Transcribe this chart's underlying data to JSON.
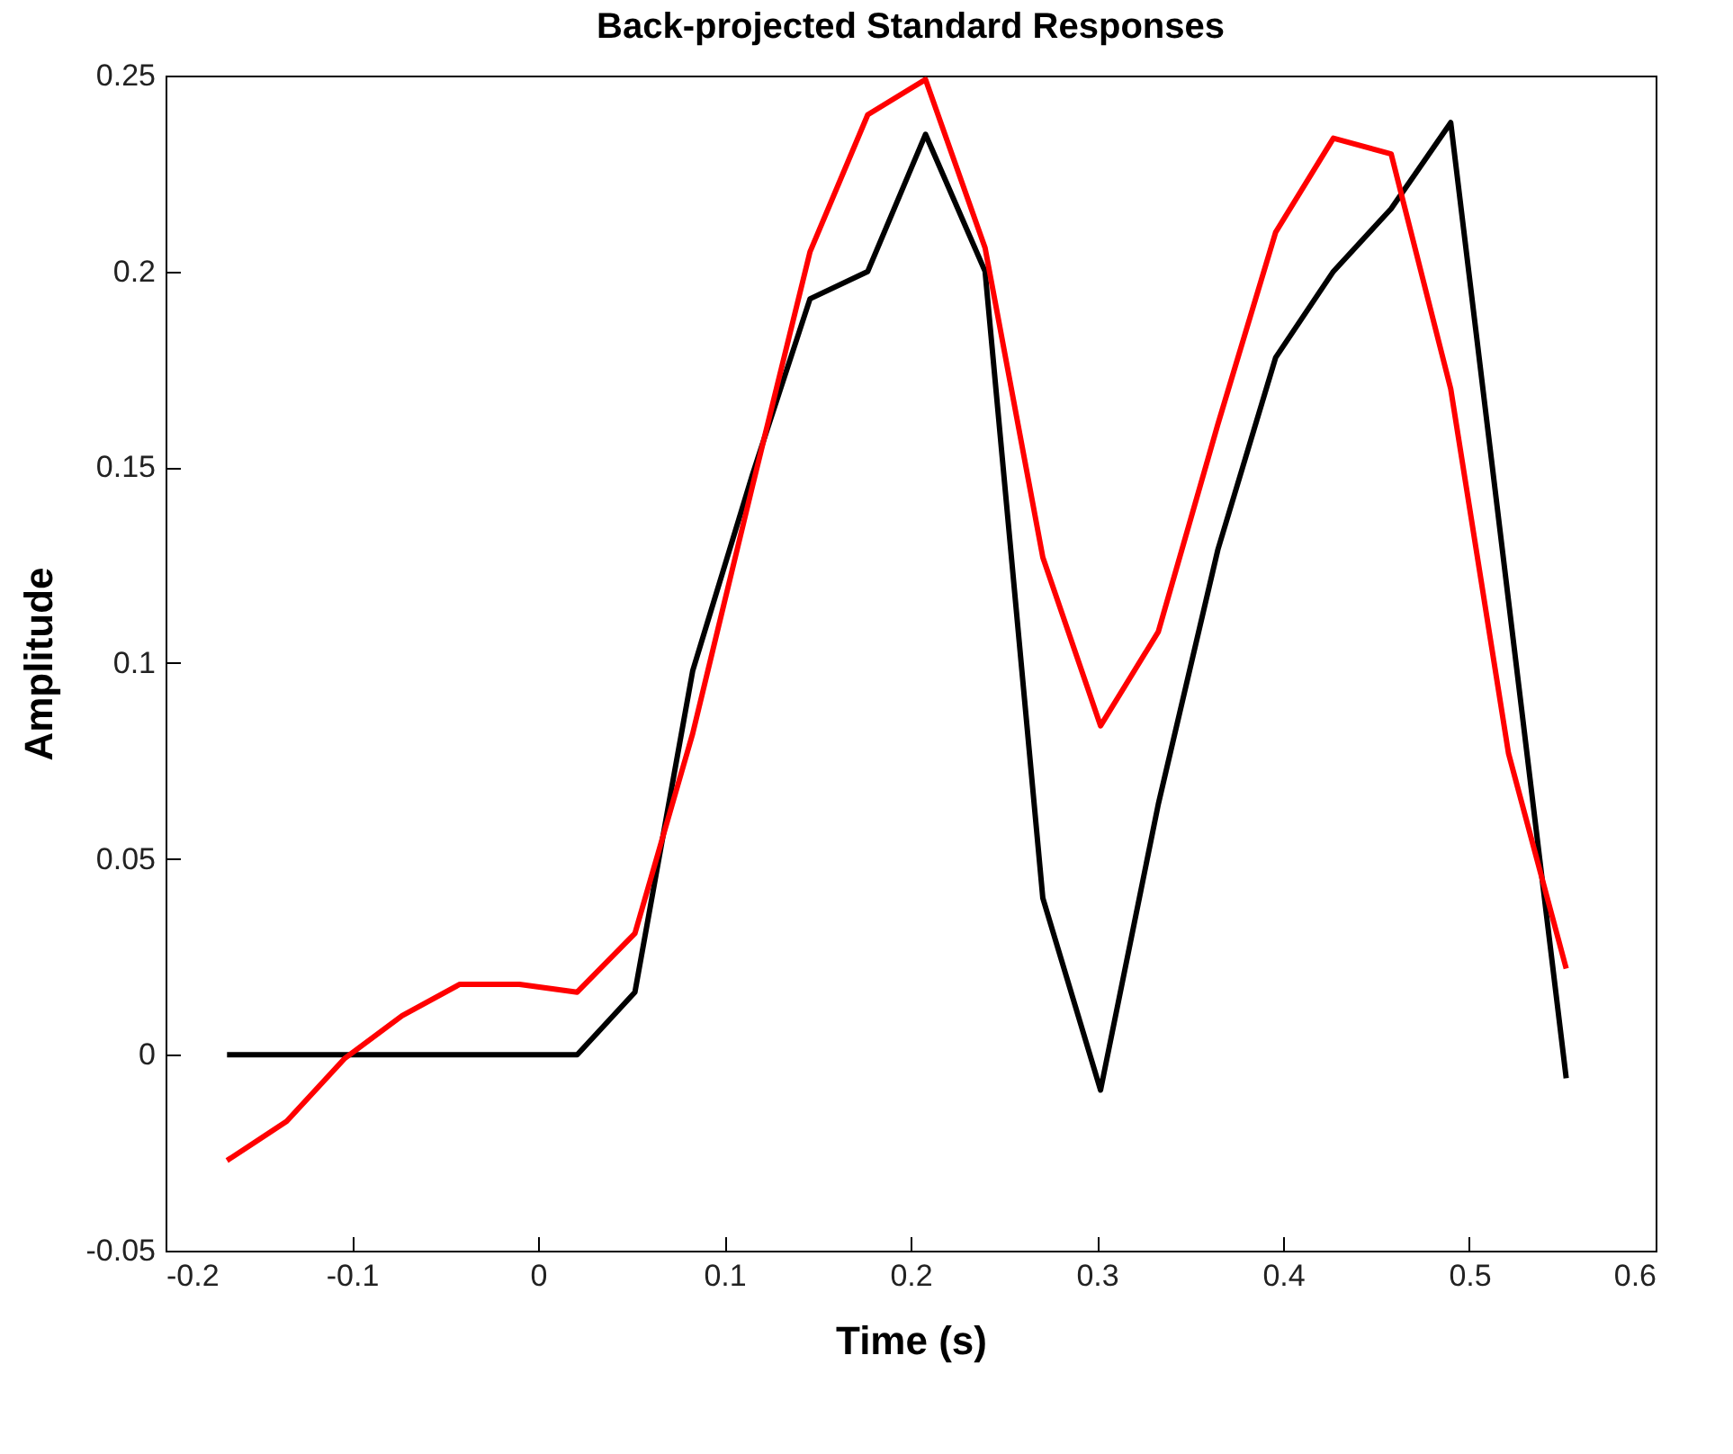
{
  "chart_data": {
    "type": "line",
    "title": "Back-projected Standard Responses",
    "xlabel": "Time (s)",
    "ylabel": "Amplitude",
    "x": [
      -0.167,
      -0.135,
      -0.104,
      -0.073,
      -0.042,
      -0.01,
      0.021,
      0.052,
      0.083,
      0.115,
      0.146,
      0.177,
      0.208,
      0.24,
      0.271,
      0.302,
      0.333,
      0.365,
      0.396,
      0.427,
      0.458,
      0.49,
      0.521,
      0.552
    ],
    "series": [
      {
        "color": "#000000",
        "values": [
          0,
          0,
          0,
          0,
          0,
          0,
          0,
          0.016,
          0.098,
          0.148,
          0.193,
          0.2,
          0.235,
          0.2,
          0.04,
          -0.009,
          0.064,
          0.129,
          0.178,
          0.2,
          0.216,
          0.238,
          0.116,
          -0.006
        ]
      },
      {
        "color": "#ff0000",
        "values": [
          -0.027,
          -0.017,
          -0.001,
          0.01,
          0.018,
          0.018,
          0.016,
          0.031,
          0.082,
          0.145,
          0.205,
          0.24,
          0.249,
          0.206,
          0.127,
          0.084,
          0.108,
          0.161,
          0.21,
          0.234,
          0.23,
          0.17,
          0.077,
          0.022
        ]
      }
    ],
    "xlim": [
      -0.2,
      0.6
    ],
    "xticks": [
      -0.2,
      -0.1,
      0,
      0.1,
      0.2,
      0.3,
      0.4,
      0.5,
      0.6
    ],
    "ylim": [
      -0.05,
      0.25
    ],
    "yticks": [
      -0.05,
      0,
      0.05,
      0.1,
      0.15,
      0.2,
      0.25
    ],
    "grid": false,
    "legend": false,
    "line_style": "solid",
    "marker": "none"
  }
}
